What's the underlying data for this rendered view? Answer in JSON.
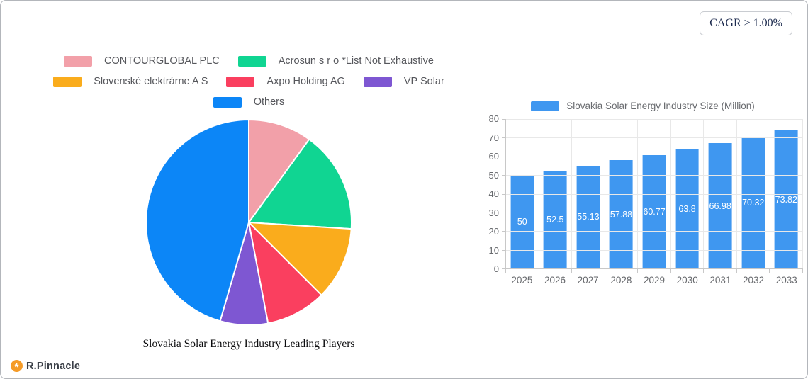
{
  "card": {
    "cagr_badge": "CAGR > 1.00%"
  },
  "brand": {
    "name": "R.Pinnacle",
    "icon": "pinwheel-icon",
    "icon_glyph": "*",
    "icon_color": "#F59B27",
    "text_color": "#3A3F47"
  },
  "chart_data": [
    {
      "type": "pie",
      "title": "Slovakia Solar Energy Industry Leading Players",
      "labels": [
        "CONTOURGLOBAL PLC",
        "Acrosun s r o *List Not Exhaustive",
        "Slovenské elektrárne A S",
        "Axpo Holding AG",
        "VP Solar",
        "Others"
      ],
      "values": [
        10,
        16,
        11.5,
        9.5,
        7.5,
        45.5
      ],
      "colors": [
        "#F2A0A9",
        "#10D592",
        "#FAAC1C",
        "#FA3F5F",
        "#7E57D2",
        "#0C86F7"
      ],
      "legend_position": "top",
      "legend_rows": [
        [
          0,
          1
        ],
        [
          2,
          3,
          4
        ],
        [
          5
        ]
      ],
      "start_angle_deg": 0,
      "direction": "clockwise"
    },
    {
      "type": "bar",
      "legend": "Slovakia Solar Energy Industry Size (Million)",
      "categories": [
        "2025",
        "2026",
        "2027",
        "2028",
        "2029",
        "2030",
        "2031",
        "2032",
        "2033"
      ],
      "values": [
        50,
        52.5,
        55.13,
        57.88,
        60.77,
        63.8,
        66.98,
        70.32,
        73.82
      ],
      "value_labels": [
        "50",
        "52.5",
        "55.13",
        "57.88",
        "60.77",
        "63.8",
        "66.98",
        "70.32",
        "73.82"
      ],
      "bar_color": "#3F97F0",
      "ylim": [
        0,
        80
      ],
      "y_ticks": [
        0,
        10,
        20,
        30,
        40,
        50,
        60,
        70,
        80
      ],
      "grid": true,
      "legend_position": "top",
      "value_label_style": "inside-center-white"
    }
  ]
}
